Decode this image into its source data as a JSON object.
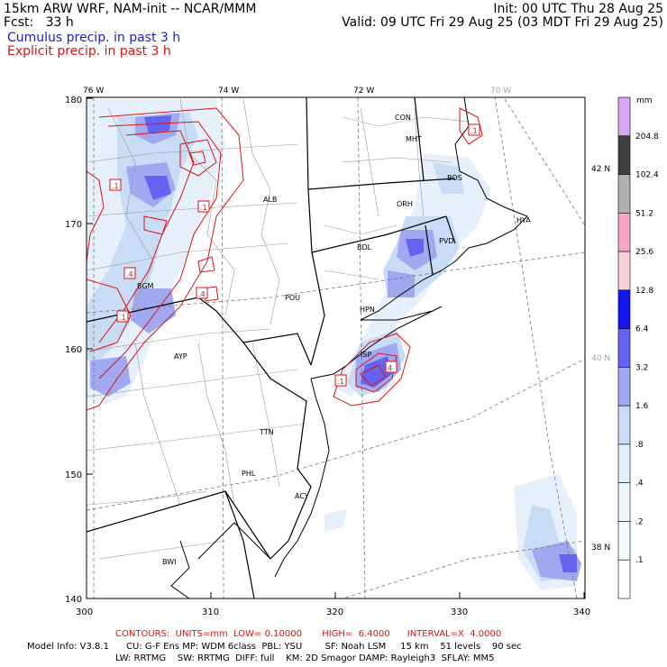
{
  "header": {
    "left_line1": "15km ARW WRF, NAM-init -- NCAR/MMM",
    "left_line2": "Fcst:   33 h",
    "right_line1": "Init: 00 UTC Thu 28 Aug 25",
    "right_line2": "Valid: 09 UTC Fri 29 Aug 25 (03 MDT Fri 29 Aug 25)",
    "legend_cumulus": "Cumulus precip. in past 3 h",
    "legend_explicit": "Explicit precip. in past 3 h"
  },
  "map": {
    "x_ticks": [
      "300",
      "310",
      "320",
      "330",
      "340"
    ],
    "y_ticks": [
      "140",
      "150",
      "160",
      "170",
      "180"
    ],
    "lon_labels": [
      "76 W",
      "74 W",
      "72 W",
      "70 W"
    ],
    "lat_labels": [
      "42 N",
      "40 N",
      "38 N"
    ],
    "station_labels": [
      "CON",
      "MHT",
      "BOS",
      "ORH",
      "HYA",
      "PVD",
      "BDL",
      "ALB",
      "POU",
      "HPN",
      "BGM",
      "AYP",
      "ISP",
      "TTN",
      "PHL",
      "ACY",
      "BWI"
    ],
    "contour_labels": [
      ".1",
      ".1",
      ".1",
      ".4",
      ".4",
      ".1",
      ".1",
      ".1",
      "4"
    ]
  },
  "colorbar": {
    "unit": "mm",
    "labels": [
      "204.8",
      "102.4",
      "51.2",
      "25.6",
      "12.8",
      "6.4",
      "3.2",
      "1.6",
      ".8",
      ".4",
      ".2",
      ".1"
    ],
    "colors": [
      "#d9a6f2",
      "#404040",
      "#b0b0b0",
      "#f8a6c8",
      "#f8d0d8",
      "#1414f0",
      "#6464f0",
      "#a0a8f0",
      "#c8dcf6",
      "#e0eefa",
      "#ecf6fa",
      "#f4fafc",
      "#ffffff"
    ]
  },
  "footer": {
    "contours": "CONTOURS:  UNITS=mm  LOW= 0.10000       HIGH=  6.4000      INTERVAL=X  4.0000",
    "model_info": "Model Info: V3.8.1      CU: G-F Ens MP: WDM 6class  PBL: YSU        SF: Noah LSM     15 km    51 levels    90 sec",
    "model_info2": "LW: RRTMG    SW: RRTMG  DIFF: full    KM: 2D Smagor DAMP: Rayleigh3  SFLAY: MM5"
  }
}
